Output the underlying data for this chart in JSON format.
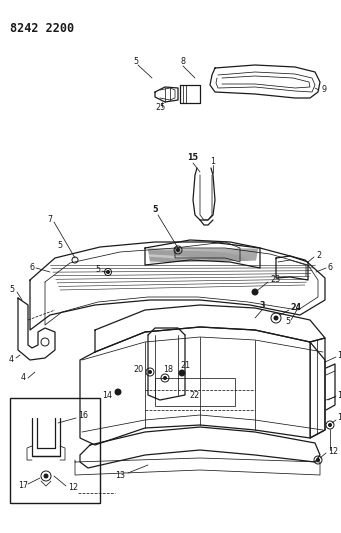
{
  "title": "8242 2200",
  "bg_color": "#ffffff",
  "line_color": "#1a1a1a",
  "figsize": [
    3.41,
    5.33
  ],
  "dpi": 100,
  "title_fontsize": 8.5,
  "label_fontsize": 5.8
}
